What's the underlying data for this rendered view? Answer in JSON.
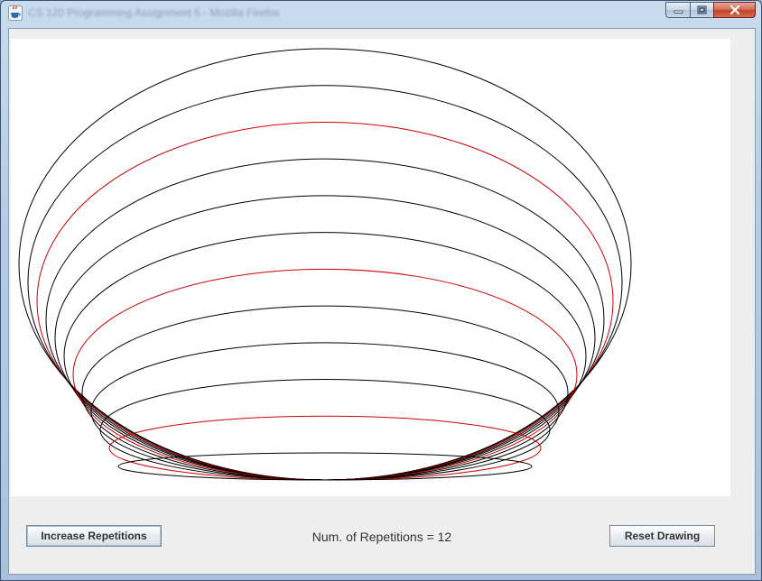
{
  "window": {
    "title": "CS 120 Programming Assignment 5 - Mozilla Firefox",
    "app_icon": "java-cup-icon"
  },
  "controls": {
    "minimize_icon": "minimize-icon",
    "maximize_icon": "maximize-icon",
    "close_icon": "close-icon"
  },
  "drawing": {
    "repetitions": 12,
    "stroke_color": "#000000",
    "highlight_color": "#cc0000",
    "highlight_every": 4,
    "background": "#ffffff"
  },
  "toolbar": {
    "increase_label": "Increase Repetitions",
    "reps_label": "Num. of Repetitions = 12",
    "reset_label": "Reset Drawing"
  }
}
